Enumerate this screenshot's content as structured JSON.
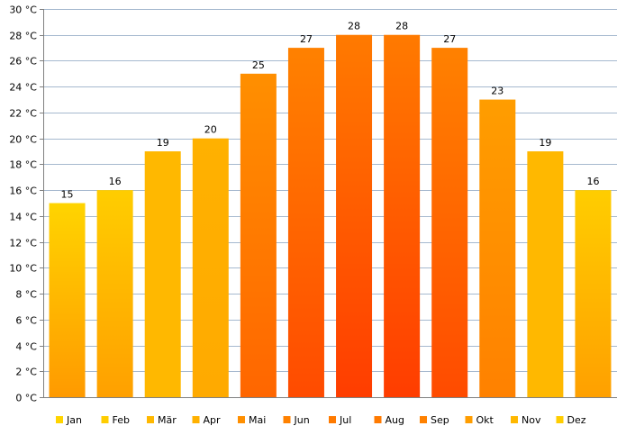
{
  "chart_data": {
    "type": "bar",
    "categories": [
      "Jan",
      "Feb",
      "Mär",
      "Apr",
      "Mai",
      "Jun",
      "Jul",
      "Aug",
      "Sep",
      "Okt",
      "Nov",
      "Dez"
    ],
    "values": [
      15,
      16,
      19,
      20,
      25,
      27,
      28,
      28,
      27,
      23,
      19,
      16
    ],
    "y_ticks": [
      "0 °C",
      "2 °C",
      "4 °C",
      "6 °C",
      "8 °C",
      "10 °C",
      "12 °C",
      "14 °C",
      "16 °C",
      "18 °C",
      "20 °C",
      "22 °C",
      "24 °C",
      "26 °C",
      "28 °C",
      "30 °C"
    ],
    "ylim": [
      0,
      30
    ],
    "y_unit": "°C",
    "grid": true,
    "legend_position": "bottom",
    "data_labels": true,
    "colors": {
      "gridline": "#a6b9cf",
      "axis": "#808080",
      "bar_cool_top": "#ffd400",
      "bar_hot_top": "#ff7a00",
      "bar_base_hot": "#ff3d00"
    }
  }
}
